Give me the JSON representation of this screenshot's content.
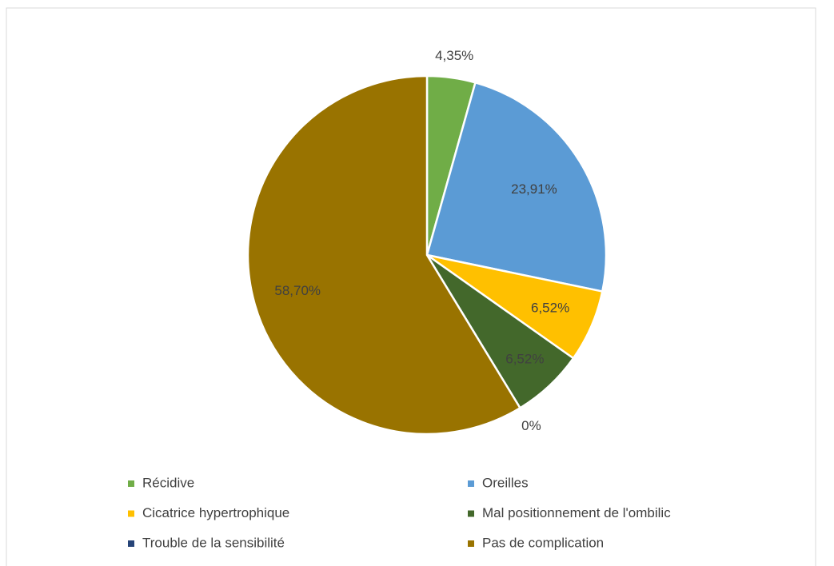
{
  "chart_data": {
    "type": "pie",
    "categories": [
      "Récidive",
      "Oreilles",
      "Cicatrice hypertrophique",
      "Mal positionnement de l'ombilic",
      "Trouble de la sensibilité",
      "Pas de complication"
    ],
    "values": [
      4.35,
      23.91,
      6.52,
      6.52,
      0,
      58.7
    ],
    "value_labels": [
      "4,35%",
      "23,91%",
      "6,52%",
      "6,52%",
      "0%",
      "58,70%"
    ],
    "colors": [
      "#70ad47",
      "#5b9bd5",
      "#ffc000",
      "#43682b",
      "#264478",
      "#997300"
    ],
    "legend": "bottom"
  }
}
